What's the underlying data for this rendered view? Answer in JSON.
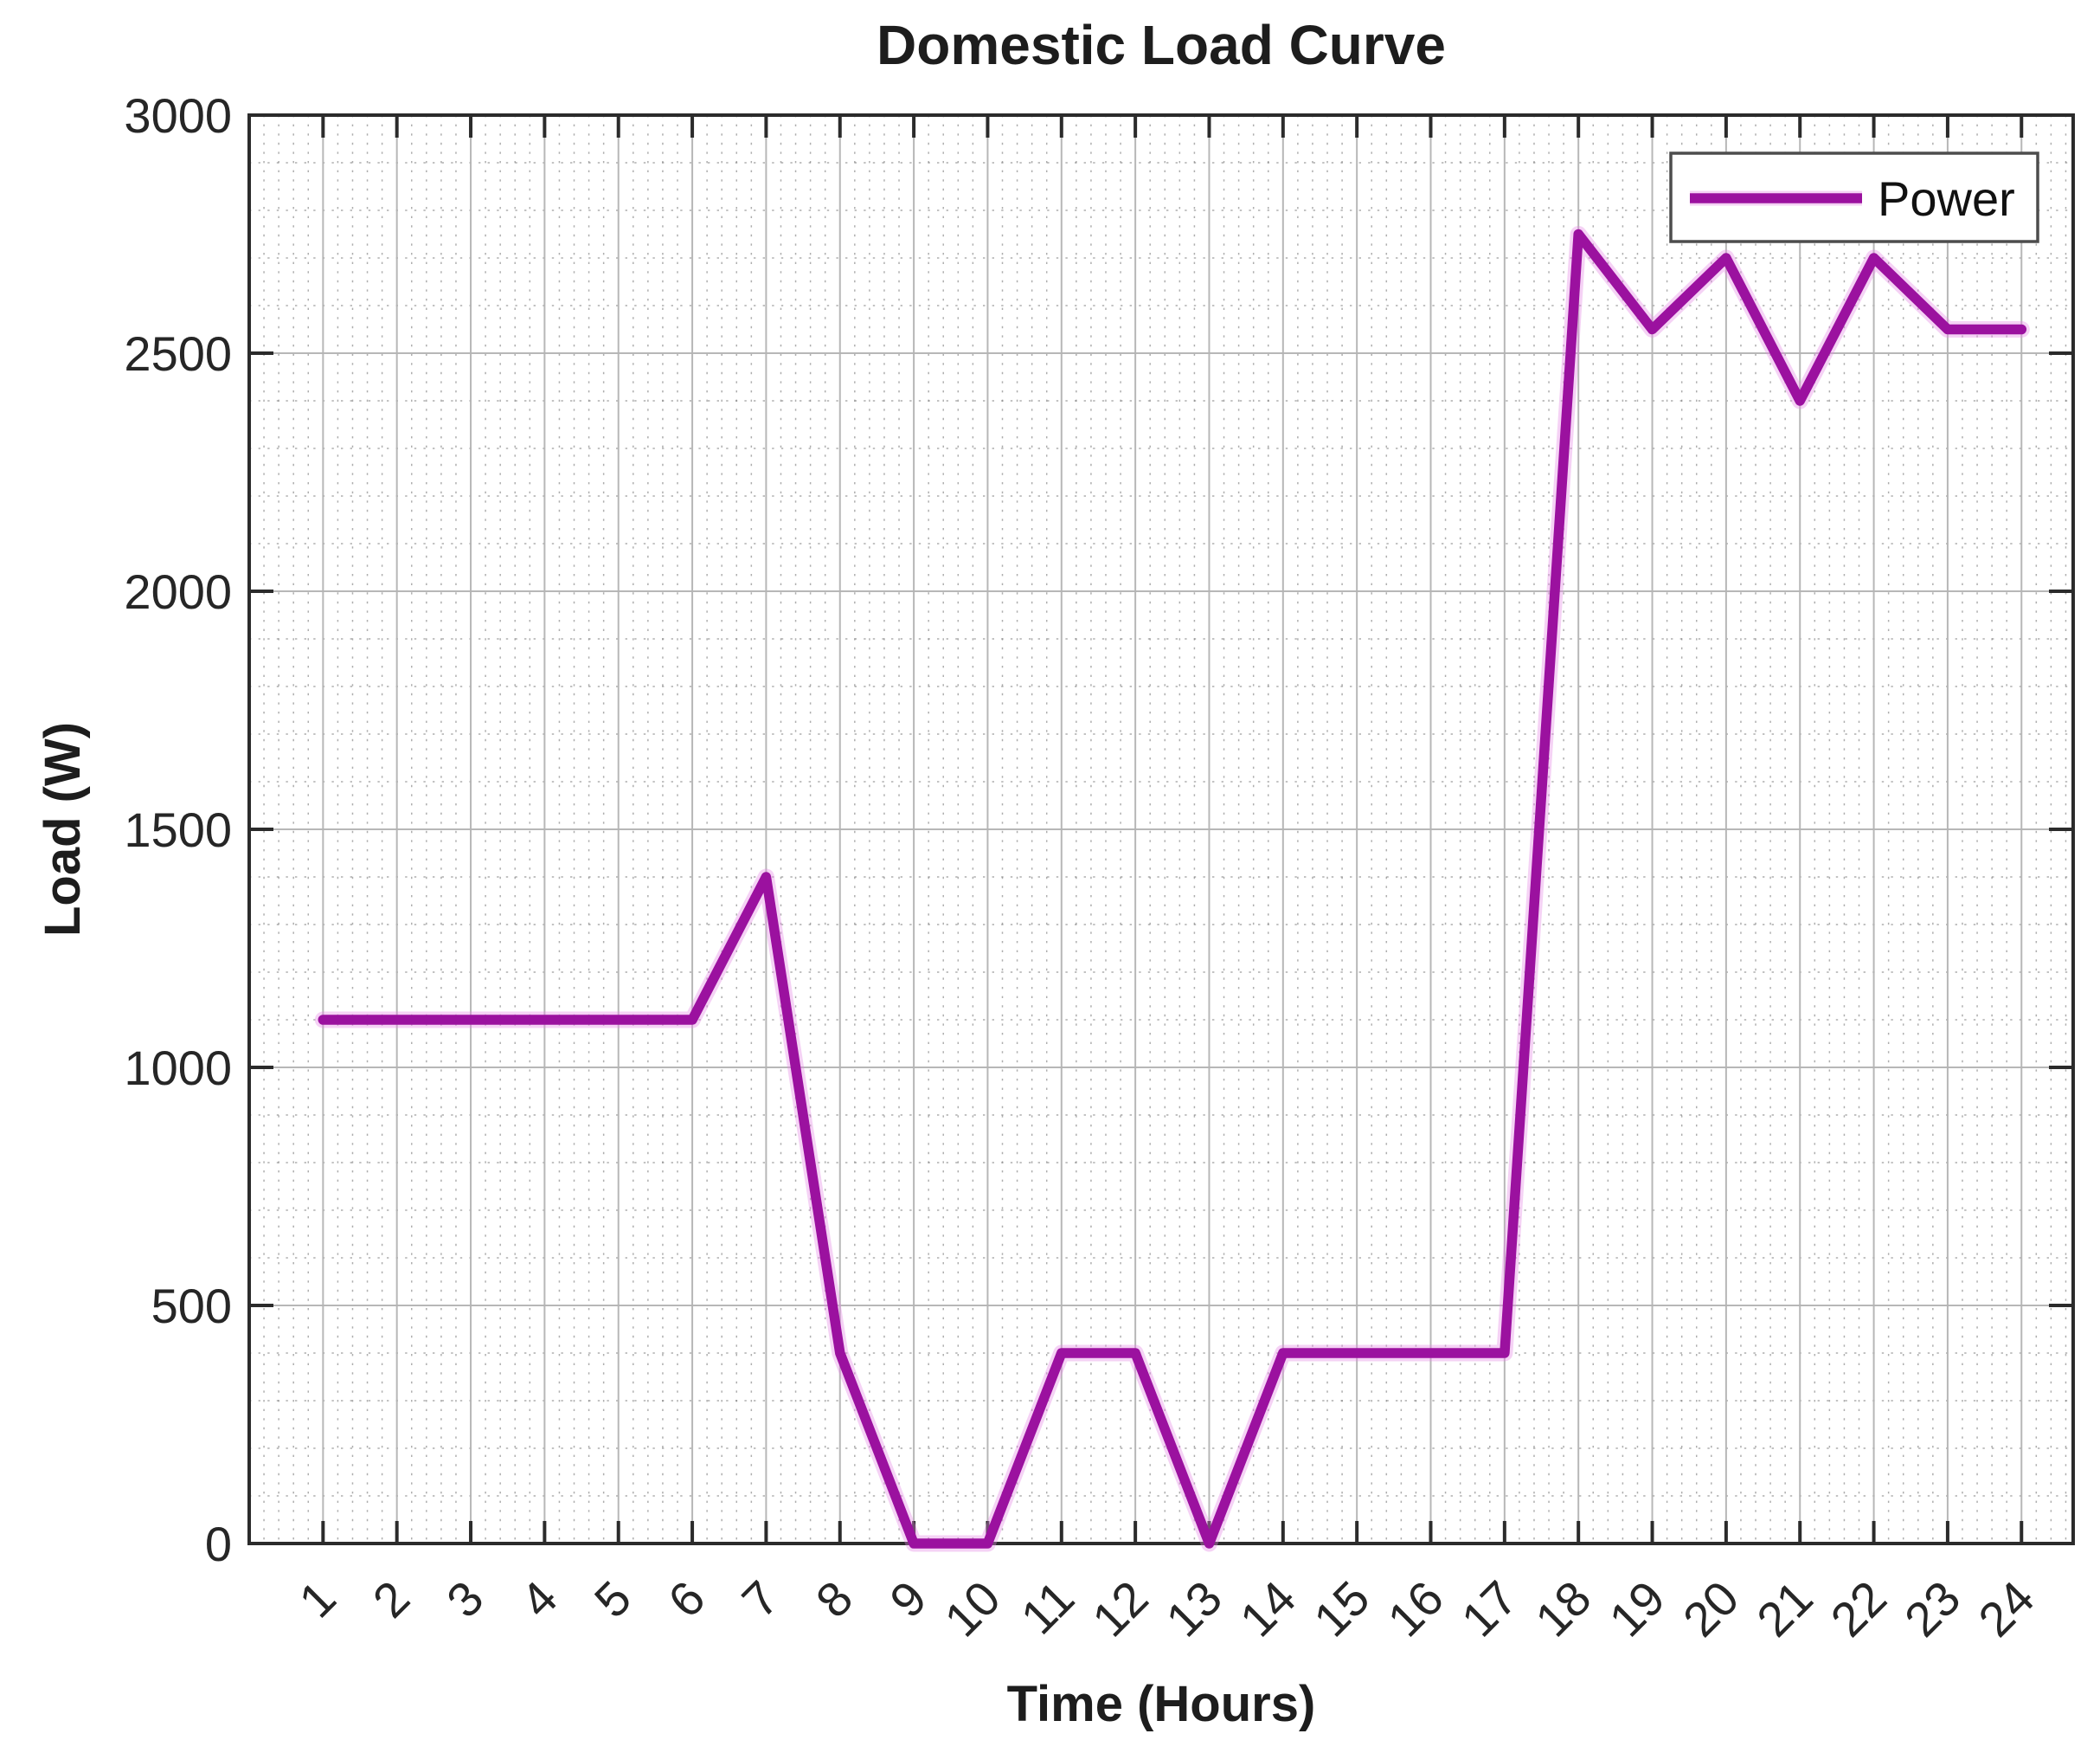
{
  "figure": {
    "background": "#ffffff"
  },
  "chart_data": {
    "type": "line",
    "title": "Domestic Load Curve",
    "xlabel": "Time (Hours)",
    "ylabel": "Load (W)",
    "x": [
      1,
      2,
      3,
      4,
      5,
      6,
      7,
      8,
      9,
      10,
      11,
      12,
      13,
      14,
      15,
      16,
      17,
      18,
      19,
      20,
      21,
      22,
      23,
      24
    ],
    "series": [
      {
        "name": "Power",
        "values": [
          1100,
          1100,
          1100,
          1100,
          1100,
          1100,
          1400,
          400,
          0,
          0,
          400,
          400,
          0,
          400,
          400,
          400,
          400,
          2750,
          2550,
          2700,
          2400,
          2700,
          2550,
          2550
        ]
      }
    ],
    "xlim": [
      0,
      24.7
    ],
    "ylim": [
      0,
      3000
    ],
    "xticks": [
      1,
      2,
      3,
      4,
      5,
      6,
      7,
      8,
      9,
      10,
      11,
      12,
      13,
      14,
      15,
      16,
      17,
      18,
      19,
      20,
      21,
      22,
      23,
      24
    ],
    "yticks": [
      0,
      500,
      1000,
      1500,
      2000,
      2500,
      3000
    ],
    "minor_x_step": 0.2,
    "minor_y_step": 100,
    "grid": {
      "major": true,
      "minor": true
    },
    "legend": {
      "label": "Power",
      "position": "top-right"
    }
  },
  "colors": {
    "line": "#9B119F",
    "line_halo": "#E489E4",
    "axis": "#2b2b2b",
    "major_grid": "#b4b4b4",
    "minor_grid": "#7e7e7e",
    "text": "#262626",
    "legend_border": "#4d4d4d",
    "legend_bg": "#ffffff"
  }
}
